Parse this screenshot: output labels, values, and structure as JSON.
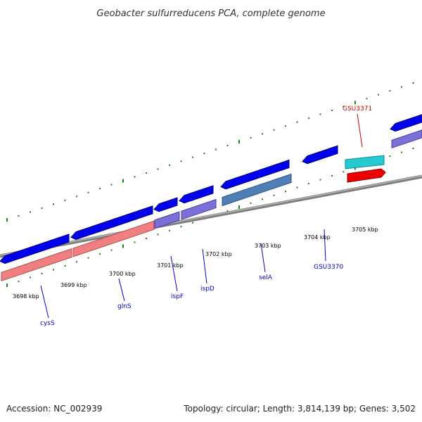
{
  "title": "Geobacter sulfurreducens PCA, complete genome",
  "footer": {
    "accession": "Accession: NC_002939",
    "summary": "Topology: circular; Length: 3,814,139 bp; Genes: 3,502"
  },
  "colors": {
    "backbone": "#8a8a8a",
    "forward_cds": "#0000ee",
    "reverse_cds": "#0000ee",
    "rrna_like": "#ef7f80",
    "purple_feature": "#7b6fd8",
    "steel_feature": "#4f7fb6",
    "cyan_feature": "#25c9d1",
    "red_feature": "#ee0000",
    "tick": "#108a10",
    "blue_label": "#0000cc",
    "red_label": "#cc0000"
  },
  "kbp_labels": [
    "3698 kbp",
    "3699 kbp",
    "3700 kbp",
    "3701 kbp",
    "3702 kbp",
    "3703 kbp",
    "3704 kbp",
    "3705 kbp"
  ],
  "gene_labels": [
    {
      "name": "cysS",
      "color": "blue"
    },
    {
      "name": "glnS",
      "color": "blue"
    },
    {
      "name": "ispF",
      "color": "blue"
    },
    {
      "name": "ispD",
      "color": "blue"
    },
    {
      "name": "selA",
      "color": "blue"
    },
    {
      "name": "GSU3370",
      "color": "blue"
    },
    {
      "name": "GSU3371",
      "color": "red"
    }
  ]
}
